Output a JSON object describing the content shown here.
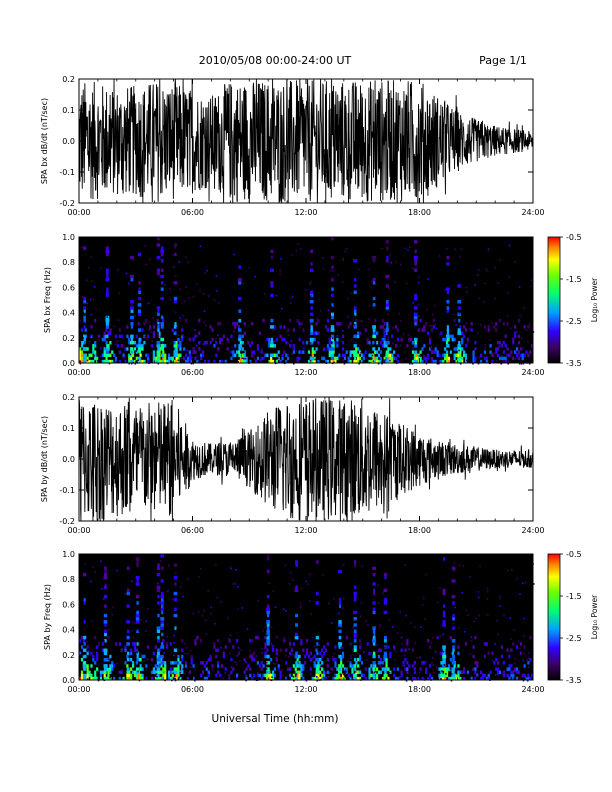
{
  "header": {
    "title": "2010/05/08  00:00-24:00 UT",
    "page": "Page 1/1"
  },
  "x_axis": {
    "label": "Universal Time (hh:mm)",
    "ticks": [
      "00:00",
      "06:00",
      "12:00",
      "18:00",
      "24:00"
    ]
  },
  "colorbar": {
    "label": "Log₁₀ Power",
    "ticks": [
      "-0.5",
      "-1.5",
      "-2.5",
      "-3.5"
    ]
  },
  "chart_data": [
    {
      "type": "line",
      "title": "",
      "ylabel": "SPA bx dB/dt (nT/sec)",
      "xlabel": "",
      "xlim": [
        0,
        24
      ],
      "ylim": [
        -0.2,
        0.2
      ],
      "yticks": [
        "0.2",
        "0.1",
        "0.0",
        "-0.1",
        "-0.2"
      ],
      "envelope": {
        "x_hours": [
          0,
          1,
          2,
          3,
          4,
          5,
          6,
          7,
          8,
          9,
          10,
          11,
          12,
          13,
          14,
          15,
          16,
          17,
          18,
          19,
          20,
          21,
          22,
          23,
          24
        ],
        "amplitude_nT_per_s": [
          0.2,
          0.19,
          0.18,
          0.18,
          0.2,
          0.19,
          0.17,
          0.15,
          0.2,
          0.2,
          0.2,
          0.2,
          0.2,
          0.2,
          0.2,
          0.2,
          0.2,
          0.2,
          0.2,
          0.15,
          0.1,
          0.07,
          0.05,
          0.04,
          0.03
        ]
      }
    },
    {
      "type": "heatmap",
      "title": "",
      "ylabel": "SPA bx Freq (Hz)",
      "xlabel": "",
      "xlim": [
        0,
        24
      ],
      "ylim": [
        0,
        1.0
      ],
      "yticks": [
        "1.0",
        "0.8",
        "0.6",
        "0.4",
        "0.2",
        "0.0"
      ],
      "color_range": [
        -3.5,
        -0.5
      ],
      "bursts_hours": [
        0.3,
        1.5,
        2.8,
        3.2,
        4.2,
        4.4,
        5.1,
        8.5,
        10.2,
        12.3,
        13.4,
        14.6,
        15.6,
        16.3,
        17.8,
        19.5,
        20.1
      ]
    },
    {
      "type": "line",
      "title": "",
      "ylabel": "SPA by dB/dt (nT/sec)",
      "xlabel": "",
      "xlim": [
        0,
        24
      ],
      "ylim": [
        -0.2,
        0.2
      ],
      "yticks": [
        "0.2",
        "0.1",
        "0.0",
        "-0.1",
        "-0.2"
      ],
      "envelope": {
        "x_hours": [
          0,
          1,
          2,
          3,
          4,
          5,
          6,
          7,
          8,
          9,
          10,
          11,
          12,
          13,
          14,
          15,
          16,
          17,
          18,
          19,
          20,
          21,
          22,
          23,
          24
        ],
        "amplitude_nT_per_s": [
          0.2,
          0.2,
          0.19,
          0.18,
          0.19,
          0.2,
          0.07,
          0.05,
          0.06,
          0.09,
          0.16,
          0.2,
          0.2,
          0.2,
          0.2,
          0.2,
          0.16,
          0.12,
          0.09,
          0.06,
          0.05,
          0.04,
          0.03,
          0.03,
          0.03
        ]
      }
    },
    {
      "type": "heatmap",
      "title": "",
      "ylabel": "SPA by Freq (Hz)",
      "xlabel": "",
      "xlim": [
        0,
        24
      ],
      "ylim": [
        0,
        1.0
      ],
      "yticks": [
        "1.0",
        "0.8",
        "0.6",
        "0.4",
        "0.2",
        "0.0"
      ],
      "color_range": [
        -3.5,
        -0.5
      ],
      "bursts_hours": [
        0.3,
        1.4,
        2.6,
        3.1,
        4.2,
        4.4,
        5.1,
        10.0,
        11.5,
        12.6,
        13.8,
        14.6,
        15.6,
        16.2,
        19.3,
        19.8
      ]
    }
  ]
}
